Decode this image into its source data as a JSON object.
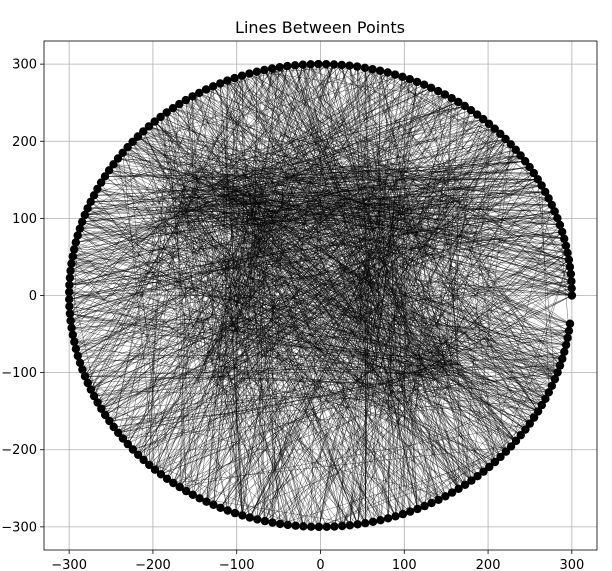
{
  "chart_data": {
    "type": "line",
    "title": "Lines Between Points",
    "xlabel": "",
    "ylabel": "",
    "xlim": [
      -330,
      330
    ],
    "ylim": [
      -330,
      330
    ],
    "x_ticks": [
      -300,
      -200,
      -100,
      0,
      100,
      200,
      300
    ],
    "y_ticks": [
      -300,
      -200,
      -100,
      0,
      100,
      200,
      300
    ],
    "x_tick_labels": [
      "−300",
      "−200",
      "−100",
      "0",
      "100",
      "200",
      "300"
    ],
    "y_tick_labels": [
      "−300",
      "−200",
      "−100",
      "0",
      "100",
      "200",
      "300"
    ],
    "grid": true,
    "circle": {
      "radius": 300,
      "point_count": 200,
      "start_angle_deg": 0,
      "end_angle_deg": 353,
      "point_color": "#000000"
    },
    "line_color": "#000000",
    "pattern": "pi",
    "pi_shape": {
      "bar_y": [
        110,
        160
      ],
      "left_leg": [
        [
          -110,
          160
        ],
        [
          -80,
          60
        ],
        [
          -100,
          -20
        ],
        [
          -130,
          -120
        ]
      ],
      "right_leg": [
        [
          90,
          160
        ],
        [
          70,
          50
        ],
        [
          60,
          -40
        ],
        [
          70,
          -140
        ]
      ],
      "right_tail": [
        [
          80,
          -140
        ],
        [
          140,
          -100
        ],
        [
          170,
          -70
        ]
      ],
      "left_tail": [
        [
          -180,
          90
        ],
        [
          -160,
          120
        ]
      ]
    }
  }
}
